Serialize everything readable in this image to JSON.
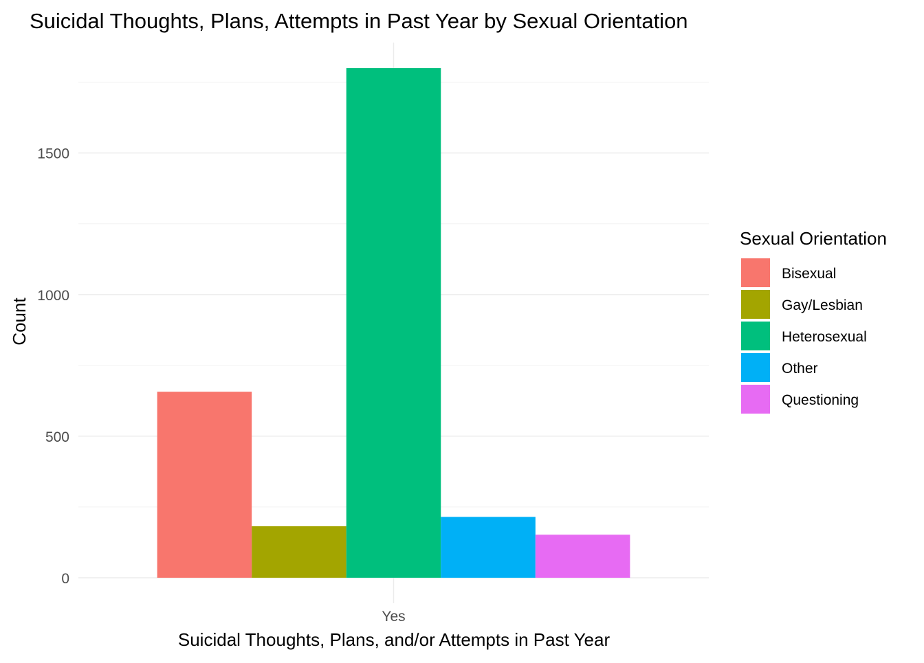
{
  "chart_data": {
    "type": "bar",
    "title": "Suicidal Thoughts, Plans, Attempts in Past Year by Sexual Orientation",
    "xlabel": "Suicidal Thoughts, Plans, and/or Attempts in Past Year",
    "ylabel": "Count",
    "categories": [
      "Yes"
    ],
    "series": [
      {
        "name": "Bisexual",
        "values": [
          657
        ],
        "color": "#F8766D"
      },
      {
        "name": "Gay/Lesbian",
        "values": [
          182
        ],
        "color": "#A3A500"
      },
      {
        "name": "Heterosexual",
        "values": [
          1800
        ],
        "color": "#00BF7D"
      },
      {
        "name": "Other",
        "values": [
          215
        ],
        "color": "#00B0F6"
      },
      {
        "name": "Questioning",
        "values": [
          152
        ],
        "color": "#E76BF3"
      }
    ],
    "yticks": [
      0,
      500,
      1000,
      1500
    ],
    "ylim": [
      -90,
      1890
    ],
    "grid": true,
    "legend": {
      "title": "Sexual Orientation",
      "position": "right"
    }
  }
}
